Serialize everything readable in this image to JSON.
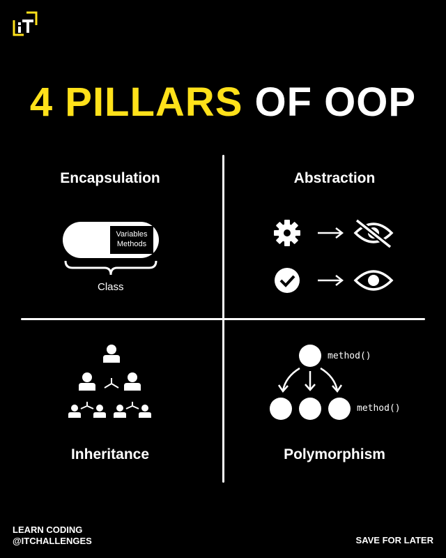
{
  "brand": {
    "logo_text": "IT"
  },
  "title": {
    "accent": "4 PILLARS",
    "rest": "OF OOP"
  },
  "quadrants": {
    "encapsulation": {
      "label": "Encapsulation",
      "inner_line1": "Variables",
      "inner_line2": "Methods",
      "brace_label": "Class"
    },
    "abstraction": {
      "label": "Abstraction"
    },
    "inheritance": {
      "label": "Inheritance"
    },
    "polymorphism": {
      "label": "Polymorphism",
      "top_method": "method()",
      "bottom_method": "method()"
    }
  },
  "icons": {
    "abstraction": [
      "gear-icon",
      "arrow-right-icon",
      "eye-off-icon",
      "check-circle-icon",
      "arrow-right-icon",
      "eye-icon"
    ],
    "inheritance": [
      "person-icon",
      "branch-icon"
    ],
    "polymorphism": [
      "circle-node",
      "curved-arrow-icon"
    ]
  },
  "footer": {
    "line1": "LEARN CODING",
    "line2": "@ITCHALLENGES",
    "save": "SAVE FOR LATER"
  },
  "colors": {
    "background": "#000000",
    "accent": "#ffe11a",
    "foreground": "#ffffff"
  }
}
